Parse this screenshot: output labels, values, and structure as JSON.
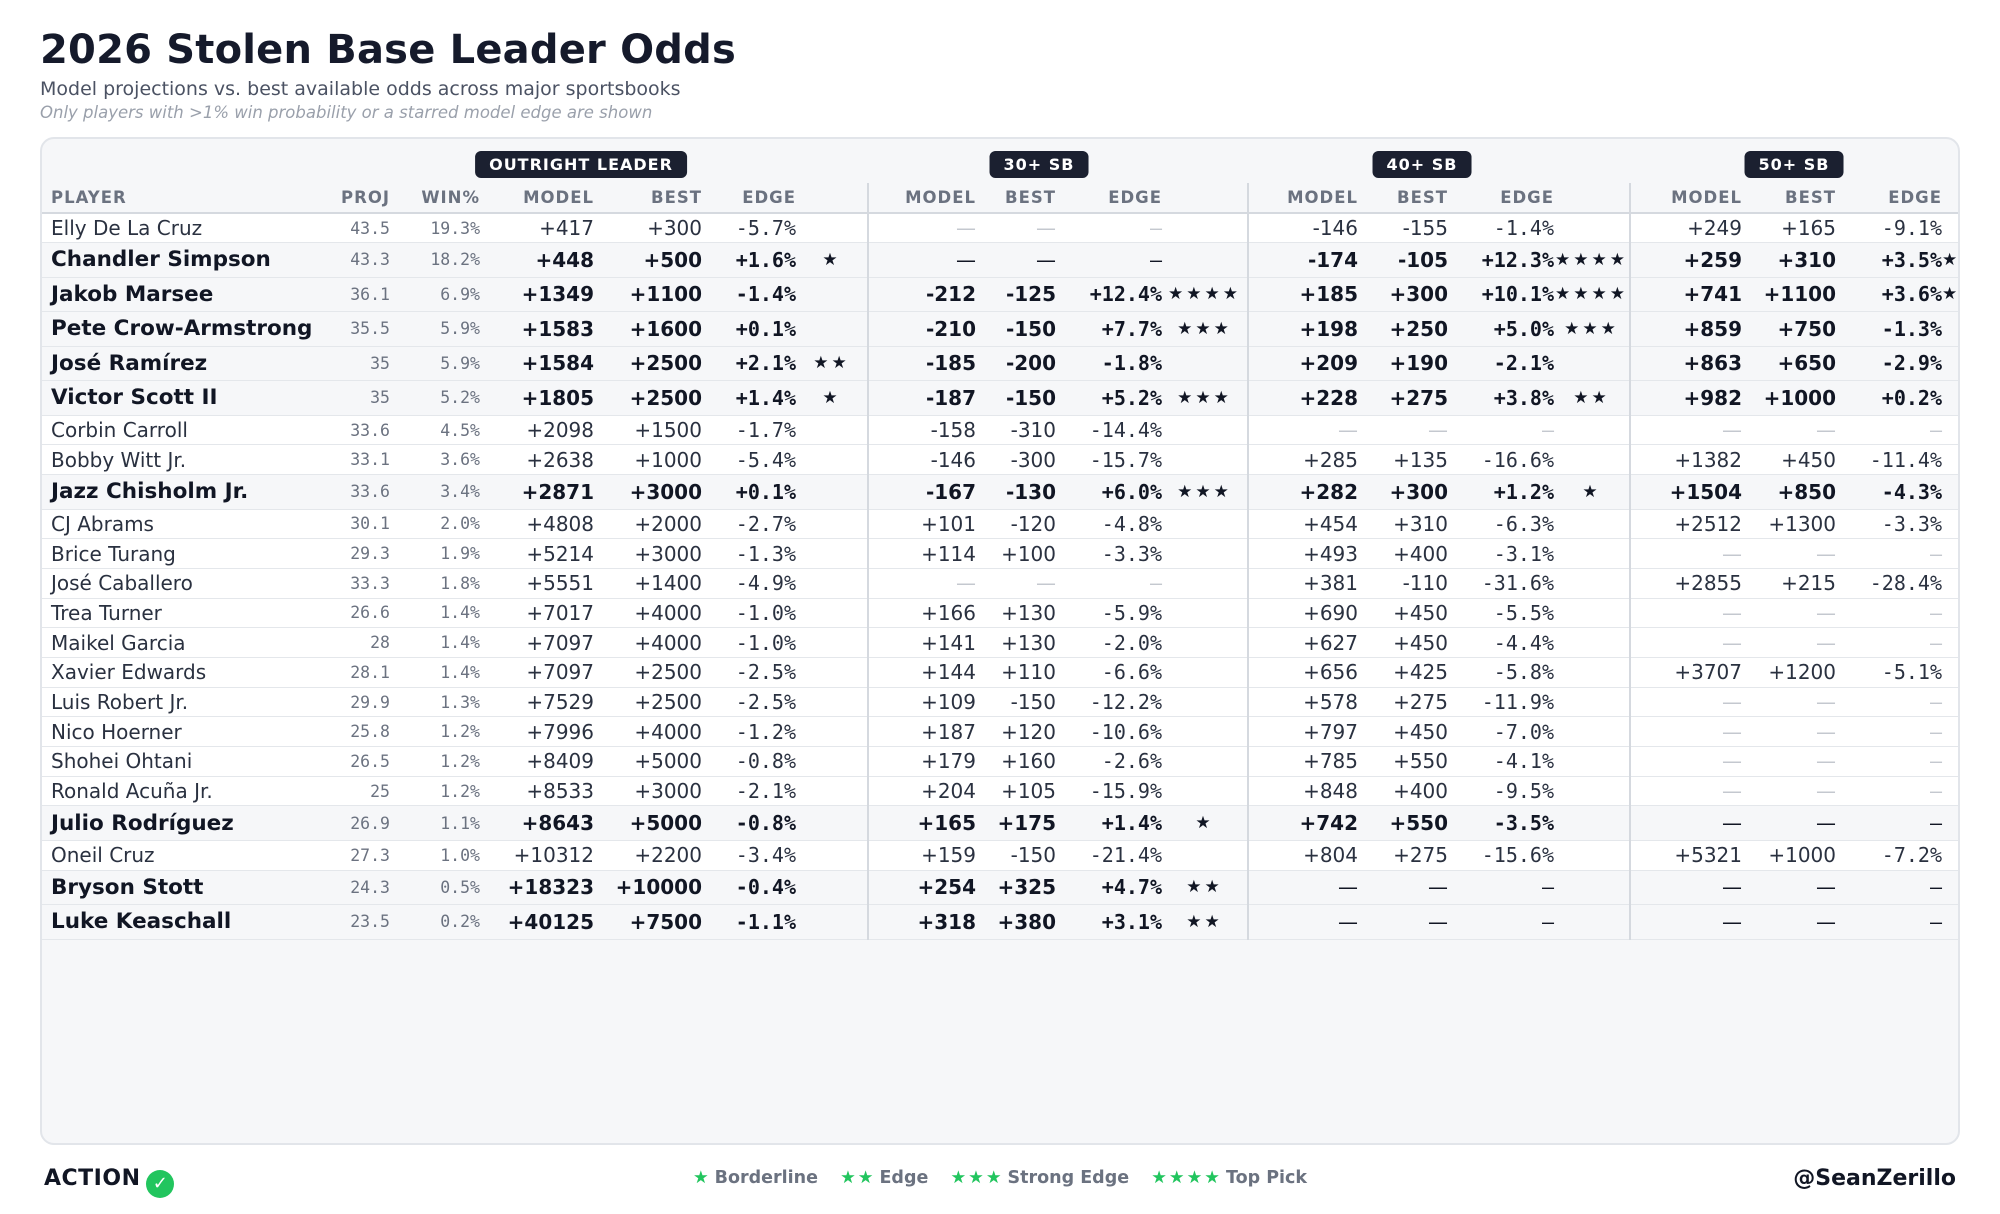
{
  "title": "2026 Stolen Base Leader Odds",
  "subtitle": "Model projections vs. best available odds across major sportsbooks",
  "note": "Only players with >1% win probability or a starred model edge are shown",
  "groups": {
    "outright": "OUTRIGHT LEADER",
    "sb30": "30+ SB",
    "sb40": "40+ SB",
    "sb50": "50+ SB"
  },
  "columns": {
    "player": "PLAYER",
    "proj": "PROJ",
    "win": "WIN%",
    "model": "MODEL",
    "best": "BEST",
    "edge": "EDGE"
  },
  "rows": [
    {
      "name": "Elly De La Cruz",
      "bold": false,
      "proj": "43.5",
      "win": "19.3%",
      "out": [
        "+417",
        "+300",
        "-5.7%",
        ""
      ],
      "s30": [
        "—",
        "—",
        "—",
        ""
      ],
      "s40": [
        "-146",
        "-155",
        "-1.4%",
        ""
      ],
      "s50": [
        "+249",
        "+165",
        "-9.1%",
        ""
      ]
    },
    {
      "name": "Chandler Simpson",
      "bold": true,
      "proj": "43.3",
      "win": "18.2%",
      "out": [
        "+448",
        "+500",
        "+1.6%",
        "★"
      ],
      "s30": [
        "—",
        "—",
        "—",
        ""
      ],
      "s40": [
        "-174",
        "-105",
        "+12.3%",
        "★★★★"
      ],
      "s50": [
        "+259",
        "+310",
        "+3.5%",
        "★★"
      ]
    },
    {
      "name": "Jakob Marsee",
      "bold": true,
      "proj": "36.1",
      "win": "6.9%",
      "out": [
        "+1349",
        "+1100",
        "-1.4%",
        ""
      ],
      "s30": [
        "-212",
        "-125",
        "+12.4%",
        "★★★★"
      ],
      "s40": [
        "+185",
        "+300",
        "+10.1%",
        "★★★★"
      ],
      "s50": [
        "+741",
        "+1100",
        "+3.6%",
        "★★"
      ]
    },
    {
      "name": "Pete Crow-Armstrong",
      "bold": true,
      "proj": "35.5",
      "win": "5.9%",
      "out": [
        "+1583",
        "+1600",
        "+0.1%",
        ""
      ],
      "s30": [
        "-210",
        "-150",
        "+7.7%",
        "★★★"
      ],
      "s40": [
        "+198",
        "+250",
        "+5.0%",
        "★★★"
      ],
      "s50": [
        "+859",
        "+750",
        "-1.3%",
        ""
      ]
    },
    {
      "name": "José Ramírez",
      "bold": true,
      "proj": "35",
      "win": "5.9%",
      "out": [
        "+1584",
        "+2500",
        "+2.1%",
        "★★"
      ],
      "s30": [
        "-185",
        "-200",
        "-1.8%",
        ""
      ],
      "s40": [
        "+209",
        "+190",
        "-2.1%",
        ""
      ],
      "s50": [
        "+863",
        "+650",
        "-2.9%",
        ""
      ]
    },
    {
      "name": "Victor Scott II",
      "bold": true,
      "proj": "35",
      "win": "5.2%",
      "out": [
        "+1805",
        "+2500",
        "+1.4%",
        "★"
      ],
      "s30": [
        "-187",
        "-150",
        "+5.2%",
        "★★★"
      ],
      "s40": [
        "+228",
        "+275",
        "+3.8%",
        "★★"
      ],
      "s50": [
        "+982",
        "+1000",
        "+0.2%",
        ""
      ]
    },
    {
      "name": "Corbin Carroll",
      "bold": false,
      "proj": "33.6",
      "win": "4.5%",
      "out": [
        "+2098",
        "+1500",
        "-1.7%",
        ""
      ],
      "s30": [
        "-158",
        "-310",
        "-14.4%",
        ""
      ],
      "s40": [
        "—",
        "—",
        "—",
        ""
      ],
      "s50": [
        "—",
        "—",
        "—",
        ""
      ]
    },
    {
      "name": "Bobby Witt Jr.",
      "bold": false,
      "proj": "33.1",
      "win": "3.6%",
      "out": [
        "+2638",
        "+1000",
        "-5.4%",
        ""
      ],
      "s30": [
        "-146",
        "-300",
        "-15.7%",
        ""
      ],
      "s40": [
        "+285",
        "+135",
        "-16.6%",
        ""
      ],
      "s50": [
        "+1382",
        "+450",
        "-11.4%",
        ""
      ]
    },
    {
      "name": "Jazz Chisholm Jr.",
      "bold": true,
      "proj": "33.6",
      "win": "3.4%",
      "out": [
        "+2871",
        "+3000",
        "+0.1%",
        ""
      ],
      "s30": [
        "-167",
        "-130",
        "+6.0%",
        "★★★"
      ],
      "s40": [
        "+282",
        "+300",
        "+1.2%",
        "★"
      ],
      "s50": [
        "+1504",
        "+850",
        "-4.3%",
        ""
      ]
    },
    {
      "name": "CJ Abrams",
      "bold": false,
      "proj": "30.1",
      "win": "2.0%",
      "out": [
        "+4808",
        "+2000",
        "-2.7%",
        ""
      ],
      "s30": [
        "+101",
        "-120",
        "-4.8%",
        ""
      ],
      "s40": [
        "+454",
        "+310",
        "-6.3%",
        ""
      ],
      "s50": [
        "+2512",
        "+1300",
        "-3.3%",
        ""
      ]
    },
    {
      "name": "Brice Turang",
      "bold": false,
      "proj": "29.3",
      "win": "1.9%",
      "out": [
        "+5214",
        "+3000",
        "-1.3%",
        ""
      ],
      "s30": [
        "+114",
        "+100",
        "-3.3%",
        ""
      ],
      "s40": [
        "+493",
        "+400",
        "-3.1%",
        ""
      ],
      "s50": [
        "—",
        "—",
        "—",
        ""
      ]
    },
    {
      "name": "José Caballero",
      "bold": false,
      "proj": "33.3",
      "win": "1.8%",
      "out": [
        "+5551",
        "+1400",
        "-4.9%",
        ""
      ],
      "s30": [
        "—",
        "—",
        "—",
        ""
      ],
      "s40": [
        "+381",
        "-110",
        "-31.6%",
        ""
      ],
      "s50": [
        "+2855",
        "+215",
        "-28.4%",
        ""
      ]
    },
    {
      "name": "Trea Turner",
      "bold": false,
      "proj": "26.6",
      "win": "1.4%",
      "out": [
        "+7017",
        "+4000",
        "-1.0%",
        ""
      ],
      "s30": [
        "+166",
        "+130",
        "-5.9%",
        ""
      ],
      "s40": [
        "+690",
        "+450",
        "-5.5%",
        ""
      ],
      "s50": [
        "—",
        "—",
        "—",
        ""
      ]
    },
    {
      "name": "Maikel Garcia",
      "bold": false,
      "proj": "28",
      "win": "1.4%",
      "out": [
        "+7097",
        "+4000",
        "-1.0%",
        ""
      ],
      "s30": [
        "+141",
        "+130",
        "-2.0%",
        ""
      ],
      "s40": [
        "+627",
        "+450",
        "-4.4%",
        ""
      ],
      "s50": [
        "—",
        "—",
        "—",
        ""
      ]
    },
    {
      "name": "Xavier Edwards",
      "bold": false,
      "proj": "28.1",
      "win": "1.4%",
      "out": [
        "+7097",
        "+2500",
        "-2.5%",
        ""
      ],
      "s30": [
        "+144",
        "+110",
        "-6.6%",
        ""
      ],
      "s40": [
        "+656",
        "+425",
        "-5.8%",
        ""
      ],
      "s50": [
        "+3707",
        "+1200",
        "-5.1%",
        ""
      ]
    },
    {
      "name": "Luis Robert Jr.",
      "bold": false,
      "proj": "29.9",
      "win": "1.3%",
      "out": [
        "+7529",
        "+2500",
        "-2.5%",
        ""
      ],
      "s30": [
        "+109",
        "-150",
        "-12.2%",
        ""
      ],
      "s40": [
        "+578",
        "+275",
        "-11.9%",
        ""
      ],
      "s50": [
        "—",
        "—",
        "—",
        ""
      ]
    },
    {
      "name": "Nico Hoerner",
      "bold": false,
      "proj": "25.8",
      "win": "1.2%",
      "out": [
        "+7996",
        "+4000",
        "-1.2%",
        ""
      ],
      "s30": [
        "+187",
        "+120",
        "-10.6%",
        ""
      ],
      "s40": [
        "+797",
        "+450",
        "-7.0%",
        ""
      ],
      "s50": [
        "—",
        "—",
        "—",
        ""
      ]
    },
    {
      "name": "Shohei Ohtani",
      "bold": false,
      "proj": "26.5",
      "win": "1.2%",
      "out": [
        "+8409",
        "+5000",
        "-0.8%",
        ""
      ],
      "s30": [
        "+179",
        "+160",
        "-2.6%",
        ""
      ],
      "s40": [
        "+785",
        "+550",
        "-4.1%",
        ""
      ],
      "s50": [
        "—",
        "—",
        "—",
        ""
      ]
    },
    {
      "name": "Ronald Acuña Jr.",
      "bold": false,
      "proj": "25",
      "win": "1.2%",
      "out": [
        "+8533",
        "+3000",
        "-2.1%",
        ""
      ],
      "s30": [
        "+204",
        "+105",
        "-15.9%",
        ""
      ],
      "s40": [
        "+848",
        "+400",
        "-9.5%",
        ""
      ],
      "s50": [
        "—",
        "—",
        "—",
        ""
      ]
    },
    {
      "name": "Julio Rodríguez",
      "bold": true,
      "proj": "26.9",
      "win": "1.1%",
      "out": [
        "+8643",
        "+5000",
        "-0.8%",
        ""
      ],
      "s30": [
        "+165",
        "+175",
        "+1.4%",
        "★"
      ],
      "s40": [
        "+742",
        "+550",
        "-3.5%",
        ""
      ],
      "s50": [
        "—",
        "—",
        "—",
        ""
      ]
    },
    {
      "name": "Oneil Cruz",
      "bold": false,
      "proj": "27.3",
      "win": "1.0%",
      "out": [
        "+10312",
        "+2200",
        "-3.4%",
        ""
      ],
      "s30": [
        "+159",
        "-150",
        "-21.4%",
        ""
      ],
      "s40": [
        "+804",
        "+275",
        "-15.6%",
        ""
      ],
      "s50": [
        "+5321",
        "+1000",
        "-7.2%",
        ""
      ]
    },
    {
      "name": "Bryson Stott",
      "bold": true,
      "proj": "24.3",
      "win": "0.5%",
      "out": [
        "+18323",
        "+10000",
        "-0.4%",
        ""
      ],
      "s30": [
        "+254",
        "+325",
        "+4.7%",
        "★★"
      ],
      "s40": [
        "—",
        "—",
        "—",
        ""
      ],
      "s50": [
        "—",
        "—",
        "—",
        ""
      ]
    },
    {
      "name": "Luke Keaschall",
      "bold": true,
      "proj": "23.5",
      "win": "0.2%",
      "out": [
        "+40125",
        "+7500",
        "-1.1%",
        ""
      ],
      "s30": [
        "+318",
        "+380",
        "+3.1%",
        "★★"
      ],
      "s40": [
        "—",
        "—",
        "—",
        ""
      ],
      "s50": [
        "—",
        "—",
        "—",
        ""
      ]
    }
  ],
  "footer": {
    "brand": "ACTION",
    "legend": [
      {
        "stars": "★",
        "label": "Borderline"
      },
      {
        "stars": "★★",
        "label": "Edge"
      },
      {
        "stars": "★★★",
        "label": "Strong Edge"
      },
      {
        "stars": "★★★★",
        "label": "Top Pick"
      }
    ],
    "handle": "@SeanZerillo"
  },
  "colors": {
    "accent": "#22c55e",
    "dark": "#1b2030",
    "row_highlight": "#f6f7f9"
  }
}
